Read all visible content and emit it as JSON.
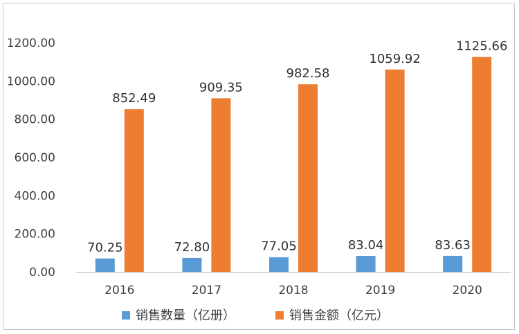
{
  "chart_data": {
    "type": "bar",
    "categories": [
      "2016",
      "2017",
      "2018",
      "2019",
      "2020"
    ],
    "series": [
      {
        "name": "销售数量（亿册）",
        "values": [
          70.25,
          72.8,
          77.05,
          83.04,
          83.63
        ],
        "labels": [
          "70.25",
          "72.80",
          "77.05",
          "83.04",
          "83.63"
        ],
        "color": "#5B9BD5"
      },
      {
        "name": "销售金额（亿元）",
        "values": [
          852.49,
          909.35,
          982.58,
          1059.92,
          1125.66
        ],
        "labels": [
          "852.49",
          "909.35",
          "982.58",
          "1059.92",
          "1125.66"
        ],
        "color": "#ED7D31"
      }
    ],
    "yticks": [
      "0.00",
      "200.00",
      "400.00",
      "600.00",
      "800.00",
      "1000.00",
      "1200.00"
    ],
    "ylim": [
      0,
      1200
    ],
    "title": "",
    "xlabel": "",
    "ylabel": "",
    "grid": false,
    "legend_position": "bottom"
  }
}
